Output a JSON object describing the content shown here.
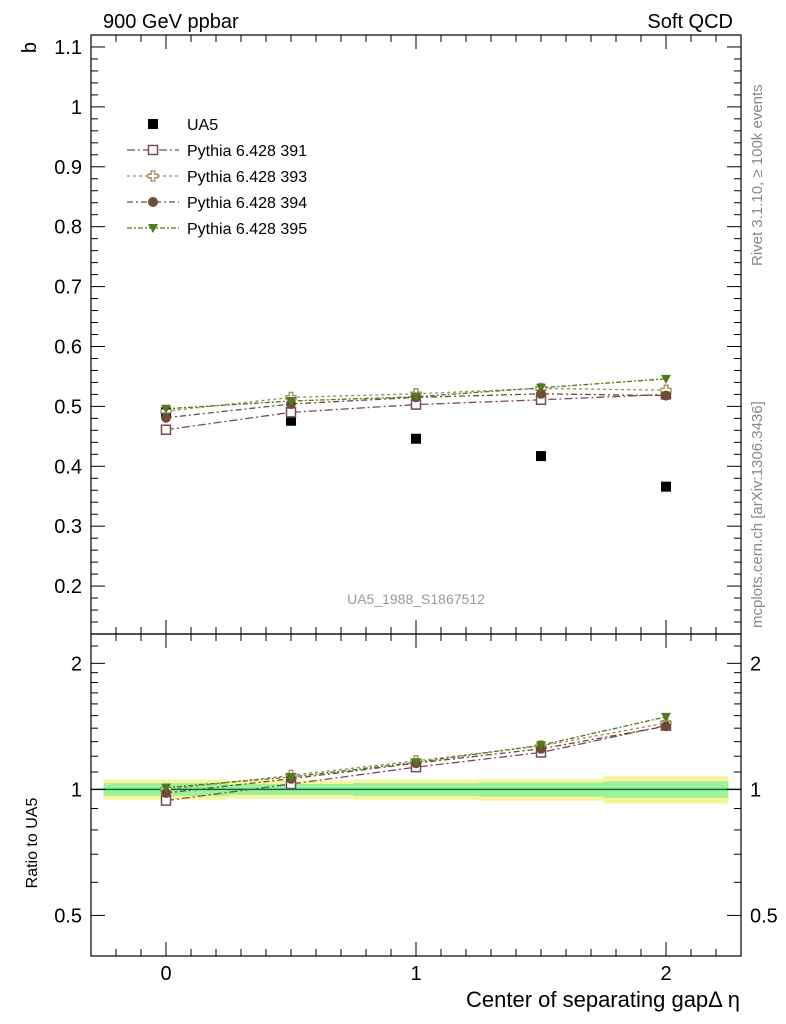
{
  "header": {
    "left_label": "900 GeV ppbar",
    "right_label": "Soft QCD"
  },
  "side_text": {
    "rivet": "Rivet 3.1.10, ≥ 100k events",
    "mcplots": "mcplots.cern.ch [arXiv:1306.3436]"
  },
  "analysis_label": "UA5_1988_S1867512",
  "colors": {
    "ua5": "#000000",
    "p391": "#7b4a57",
    "p393": "#9a8a58",
    "p394": "#6e4c36",
    "p395": "#4f7a1e",
    "band_yellow": "#f7f59c",
    "band_green": "#9cf29a",
    "ratio_line": "#0c6a3a"
  },
  "chart_data": [
    {
      "type": "scatter",
      "ylabel": "b",
      "xlim": [
        -0.3,
        2.3
      ],
      "ylim": [
        0.12,
        1.12
      ],
      "yticks": [
        "0.2",
        "0.3",
        "0.4",
        "0.5",
        "0.6",
        "0.7",
        "0.8",
        "0.9",
        "1",
        "1.1"
      ],
      "legend_position": "top-left",
      "x": [
        0,
        0.5,
        1,
        1.5,
        2
      ],
      "series": [
        {
          "name": "UA5",
          "key": "ua5",
          "marker": "filled-square",
          "line": false,
          "values": [
            0.49,
            0.476,
            0.446,
            0.417,
            0.366
          ]
        },
        {
          "name": "Pythia 6.428 391",
          "key": "p391",
          "marker": "open-square",
          "line": true,
          "values": [
            0.461,
            0.49,
            0.503,
            0.511,
            0.52
          ]
        },
        {
          "name": "Pythia 6.428 393",
          "key": "p393",
          "marker": "open-cross",
          "line": true,
          "values": [
            0.492,
            0.515,
            0.521,
            0.53,
            0.527
          ]
        },
        {
          "name": "Pythia 6.428 394",
          "key": "p394",
          "marker": "filled-circle",
          "line": true,
          "values": [
            0.481,
            0.504,
            0.515,
            0.521,
            0.518
          ]
        },
        {
          "name": "Pythia 6.428 395",
          "key": "p395",
          "marker": "filled-triangle-down",
          "line": true,
          "values": [
            0.496,
            0.509,
            0.516,
            0.531,
            0.546
          ]
        }
      ]
    },
    {
      "type": "scatter",
      "ylabel": "Ratio to UA5",
      "xlabel": "Center of separating gapΔ η",
      "ylim_log": [
        0.4,
        2.35
      ],
      "yticks": [
        "0.5",
        "1",
        "2"
      ],
      "xticks": [
        "0",
        "1",
        "2"
      ],
      "x": [
        0,
        0.5,
        1,
        1.5,
        2
      ],
      "reference_band": {
        "bins": [
          [
            -0.25,
            0.25
          ],
          [
            0.25,
            0.75
          ],
          [
            0.75,
            1.25
          ],
          [
            1.25,
            1.75
          ],
          [
            1.75,
            2.25
          ]
        ],
        "yellow": [
          [
            0.945,
            1.055
          ],
          [
            0.95,
            1.05
          ],
          [
            0.945,
            1.055
          ],
          [
            0.94,
            1.06
          ],
          [
            0.925,
            1.075
          ]
        ],
        "green": [
          [
            0.965,
            1.035
          ],
          [
            0.97,
            1.03
          ],
          [
            0.965,
            1.035
          ],
          [
            0.962,
            1.038
          ],
          [
            0.955,
            1.045
          ]
        ]
      },
      "series": [
        {
          "name": "Pythia 6.428 391",
          "key": "p391",
          "marker": "open-square",
          "values": [
            0.94,
            1.03,
            1.13,
            1.225,
            1.42
          ]
        },
        {
          "name": "Pythia 6.428 393",
          "key": "p393",
          "marker": "open-cross",
          "values": [
            1.0,
            1.08,
            1.17,
            1.27,
            1.44
          ]
        },
        {
          "name": "Pythia 6.428 394",
          "key": "p394",
          "marker": "filled-circle",
          "values": [
            0.98,
            1.06,
            1.155,
            1.25,
            1.415
          ]
        },
        {
          "name": "Pythia 6.428 395",
          "key": "p395",
          "marker": "filled-triangle-down",
          "values": [
            1.01,
            1.07,
            1.16,
            1.275,
            1.49
          ]
        }
      ]
    }
  ]
}
